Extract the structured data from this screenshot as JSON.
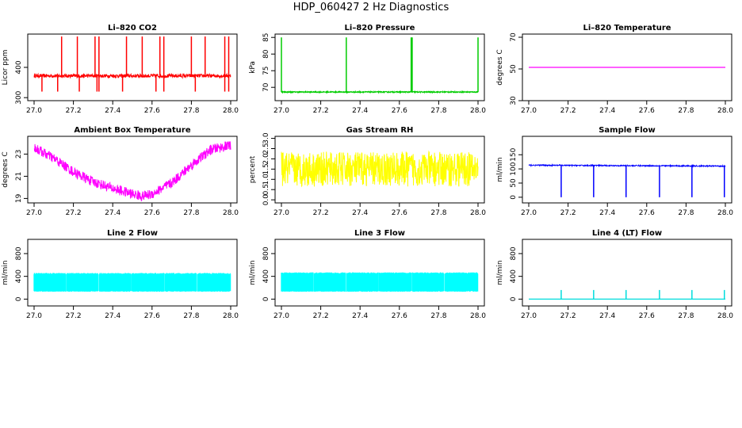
{
  "page": {
    "title": "HDP_060427  2 Hz Diagnostics"
  },
  "chart_data": [
    {
      "type": "line",
      "title": "Li–820 CO2",
      "ylabel": "Licor ppm",
      "color": "#ff0000",
      "xlim": [
        27.0,
        28.0
      ],
      "ylim": [
        290,
        510
      ],
      "xticks": [
        "27.0",
        "27.2",
        "27.4",
        "27.6",
        "27.8",
        "28.0"
      ],
      "yticks": [
        "300",
        "400"
      ],
      "ytick_values": [
        300,
        400
      ],
      "series": [
        {
          "x": [
            27.0,
            28.0
          ],
          "y": [
            372,
            372
          ]
        }
      ],
      "noise": 6,
      "spikes_up": [
        27.14,
        27.22,
        27.31,
        27.33,
        27.47,
        27.55,
        27.64,
        27.66,
        27.8,
        27.87,
        27.97,
        27.99
      ],
      "spike_up_to": 502,
      "spikes_down": [
        27.04,
        27.12,
        27.23,
        27.32,
        27.33,
        27.45,
        27.62,
        27.66,
        27.82,
        27.97,
        27.99
      ],
      "spike_down_to": 320
    },
    {
      "type": "line",
      "title": "Li–820 Pressure",
      "ylabel": "kPa",
      "color": "#00cc00",
      "xlim": [
        27.0,
        28.0
      ],
      "ylim": [
        66,
        86
      ],
      "xticks": [
        "27.0",
        "27.2",
        "27.4",
        "27.6",
        "27.8",
        "28.0"
      ],
      "yticks": [
        "70",
        "75",
        "80",
        "85"
      ],
      "ytick_values": [
        70,
        75,
        80,
        85
      ],
      "series": [
        {
          "x": [
            27.0,
            28.0
          ],
          "y": [
            68.6,
            68.6
          ]
        }
      ],
      "noise": 0.15,
      "spikes_up": [
        27.0,
        27.33,
        27.66,
        27.665,
        28.0
      ],
      "spike_up_to": 85,
      "spikes_down": [],
      "spike_down_to": 68
    },
    {
      "type": "line",
      "title": "Li–820 Temperature",
      "ylabel": "degrees C",
      "color": "#ff00ff",
      "xlim": [
        27.0,
        28.0
      ],
      "ylim": [
        30,
        72
      ],
      "xticks": [
        "27.0",
        "27.2",
        "27.4",
        "27.6",
        "27.8",
        "28.0"
      ],
      "yticks": [
        "30",
        "50",
        "70"
      ],
      "ytick_values": [
        30,
        50,
        70
      ],
      "series": [
        {
          "x": [
            27.0,
            28.0
          ],
          "y": [
            51,
            51
          ]
        }
      ],
      "noise": 0,
      "spikes_up": [],
      "spike_up_to": 51,
      "spikes_down": [],
      "spike_down_to": 51
    },
    {
      "type": "line",
      "title": "Ambient Box Temperature",
      "ylabel": "degrees C",
      "color": "#ff00ff",
      "xlim": [
        27.0,
        28.0
      ],
      "ylim": [
        18.6,
        24.6
      ],
      "xticks": [
        "27.0",
        "27.2",
        "27.4",
        "27.6",
        "27.8",
        "28.0"
      ],
      "yticks": [
        "19",
        "21",
        "23"
      ],
      "ytick_values": [
        19,
        21,
        23
      ],
      "series": [
        {
          "x": [
            27.0,
            27.1,
            27.2,
            27.3,
            27.4,
            27.5,
            27.55,
            27.6,
            27.7,
            27.8,
            27.9,
            28.0
          ],
          "y": [
            23.6,
            22.6,
            21.4,
            20.5,
            19.9,
            19.4,
            19.2,
            19.4,
            20.4,
            22.0,
            23.4,
            23.8
          ]
        }
      ],
      "noise": 0.45,
      "spikes_up": [],
      "spike_up_to": 24,
      "spikes_down": [],
      "spike_down_to": 19
    },
    {
      "type": "line",
      "title": "Gas Stream RH",
      "ylabel": "percent",
      "color": "#ffff00",
      "xlim": [
        27.0,
        28.0
      ],
      "ylim": [
        -0.15,
        3.1
      ],
      "xticks": [
        "27.0",
        "27.2",
        "27.4",
        "27.6",
        "27.8",
        "28.0"
      ],
      "yticks": [
        "0.0",
        "0.5",
        "1.0",
        "1.5",
        "2.0",
        "2.5",
        "3.0"
      ],
      "ytick_values": [
        0,
        0.5,
        1.0,
        1.5,
        2.0,
        2.5,
        3.0
      ],
      "series": [
        {
          "x": [
            27.0,
            28.0
          ],
          "y": [
            1.5,
            1.5
          ]
        }
      ],
      "noise": 0.85,
      "spikes_up": [],
      "spike_up_to": 2.9,
      "spikes_down": [],
      "spike_down_to": 0
    },
    {
      "type": "line",
      "title": "Sample Flow",
      "ylabel": "ml/min",
      "color": "#0000ff",
      "xlim": [
        27.0,
        28.0
      ],
      "ylim": [
        -20,
        215
      ],
      "xticks": [
        "27.0",
        "27.2",
        "27.4",
        "27.6",
        "27.8",
        "28.0"
      ],
      "yticks": [
        "0",
        "50",
        "100",
        "150"
      ],
      "ytick_values": [
        0,
        50,
        100,
        150
      ],
      "series": [
        {
          "x": [
            27.0,
            28.0
          ],
          "y": [
            113,
            110
          ]
        }
      ],
      "noise": 2,
      "spikes_up": [],
      "spike_up_to": 120,
      "spikes_down": [
        27.165,
        27.33,
        27.495,
        27.665,
        27.83,
        27.995
      ],
      "spike_down_to": 0
    },
    {
      "type": "area",
      "title": "Line 2 Flow",
      "ylabel": "ml/min",
      "color": "#00ffff",
      "xlim": [
        27.0,
        28.0
      ],
      "ylim": [
        -120,
        1050
      ],
      "xticks": [
        "27.0",
        "27.2",
        "27.4",
        "27.6",
        "27.8",
        "28.0"
      ],
      "yticks": [
        "0",
        "400",
        "800"
      ],
      "ytick_values": [
        0,
        400,
        800
      ],
      "series": [
        {
          "x": [
            27.0,
            28.0
          ],
          "y": [
            460,
            460
          ]
        }
      ],
      "band_low": 130,
      "band_high": 460,
      "gaps": [
        27.165,
        27.33,
        27.495,
        27.665,
        27.83
      ]
    },
    {
      "type": "area",
      "title": "Line 3 Flow",
      "ylabel": "ml/min",
      "color": "#00ffff",
      "xlim": [
        27.0,
        28.0
      ],
      "ylim": [
        -120,
        1050
      ],
      "xticks": [
        "27.0",
        "27.2",
        "27.4",
        "27.6",
        "27.8",
        "28.0"
      ],
      "yticks": [
        "0",
        "400",
        "800"
      ],
      "ytick_values": [
        0,
        400,
        800
      ],
      "series": [
        {
          "x": [
            27.0,
            28.0
          ],
          "y": [
            470,
            470
          ]
        }
      ],
      "band_low": 130,
      "band_high": 470,
      "gaps": [
        27.165,
        27.33,
        27.495,
        27.665,
        27.83
      ]
    },
    {
      "type": "line",
      "title": "Line 4 (LT) Flow",
      "ylabel": "ml/min",
      "color": "#00dddd",
      "xlim": [
        27.0,
        28.0
      ],
      "ylim": [
        -120,
        1050
      ],
      "xticks": [
        "27.0",
        "27.2",
        "27.4",
        "27.6",
        "27.8",
        "28.0"
      ],
      "yticks": [
        "0",
        "400",
        "800"
      ],
      "ytick_values": [
        0,
        400,
        800
      ],
      "series": [
        {
          "x": [
            27.0,
            28.0
          ],
          "y": [
            0,
            0
          ]
        }
      ],
      "noise": 0,
      "spikes_up": [
        27.165,
        27.33,
        27.495,
        27.665,
        27.83,
        27.995
      ],
      "spike_up_to": 160,
      "spikes_down": [],
      "spike_down_to": 0
    }
  ]
}
